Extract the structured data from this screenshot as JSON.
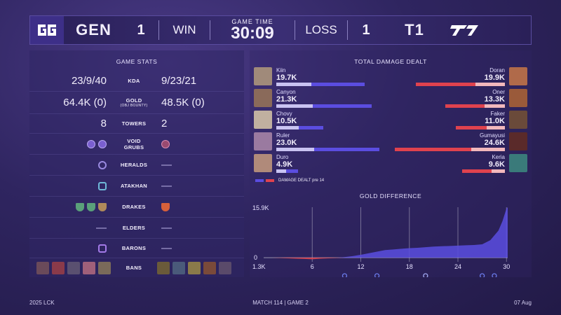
{
  "header": {
    "team_left": {
      "name": "GEN",
      "wins": "1",
      "result": "WIN"
    },
    "game_time_label": "GAME TIME",
    "game_time": "30:09",
    "team_right": {
      "name": "T1",
      "wins": "1",
      "result": "LOSS"
    }
  },
  "game_stats": {
    "title": "GAME STATS",
    "kda": {
      "label": "KDA",
      "left": "23/9/40",
      "right": "9/23/21"
    },
    "gold": {
      "label": "GOLD",
      "sublabel": "(OBJ BOUNTY)",
      "left": "64.4K (0)",
      "right": "48.5K (0)"
    },
    "towers": {
      "label": "TOWERS",
      "left": "8",
      "right": "2"
    },
    "void_grubs": {
      "label": "VOID GRUBS",
      "left_count": 2,
      "right_count": 1
    },
    "heralds": {
      "label": "HERALDS",
      "left_count": 1,
      "right": "—"
    },
    "atakhan": {
      "label": "ATAKHAN",
      "left_count": 1,
      "right": "—"
    },
    "drakes": {
      "label": "DRAKES",
      "left_icons": [
        "drake-g",
        "drake-g",
        "drake-b"
      ],
      "right_icons": [
        "drake-r"
      ]
    },
    "elders": {
      "label": "ELDERS",
      "left": "—",
      "right": "—"
    },
    "barons": {
      "label": "BARONS",
      "left_count": 1,
      "right": "—"
    },
    "bans": {
      "label": "BANS"
    }
  },
  "damage": {
    "title": "TOTAL DAMAGE DEALT",
    "legend": "DAMAGE DEALT pre 14",
    "colors": {
      "left": "#5b4de0",
      "left_pre": "#c9c3f2",
      "right": "#e0424e",
      "right_pre": "#f2b8bc"
    },
    "max": 25,
    "left": [
      {
        "name": "Kiin",
        "value_label": "19.7K",
        "value": 19.7,
        "pre": 7.8
      },
      {
        "name": "Canyon",
        "value_label": "21.3K",
        "value": 21.3,
        "pre": 8.2
      },
      {
        "name": "Chovy",
        "value_label": "10.5K",
        "value": 10.5,
        "pre": 5.0
      },
      {
        "name": "Ruler",
        "value_label": "23.0K",
        "value": 23.0,
        "pre": 8.5
      },
      {
        "name": "Duro",
        "value_label": "4.9K",
        "value": 4.9,
        "pre": 2.2
      }
    ],
    "right": [
      {
        "name": "Doran",
        "value_label": "19.9K",
        "value": 19.9,
        "pre": 6.5
      },
      {
        "name": "Oner",
        "value_label": "13.3K",
        "value": 13.3,
        "pre": 4.5
      },
      {
        "name": "Faker",
        "value_label": "11.0K",
        "value": 11.0,
        "pre": 4.0
      },
      {
        "name": "Gumayusi",
        "value_label": "24.6K",
        "value": 24.6,
        "pre": 7.5
      },
      {
        "name": "Keria",
        "value_label": "9.6K",
        "value": 9.6,
        "pre": 3.0
      }
    ]
  },
  "chart_data": {
    "type": "area",
    "title": "GOLD DIFFERENCE",
    "y_top_label": "15.9K",
    "y_zero_label": "0",
    "y_min_label": "1.3K",
    "ylim": [
      -1.3,
      15.9
    ],
    "xlim": [
      0,
      30.15
    ],
    "x_ticks": [
      6,
      12,
      18,
      24,
      30
    ],
    "x": [
      0,
      1,
      2,
      3,
      4,
      5,
      6,
      7,
      8,
      9,
      10,
      11,
      12,
      13,
      14,
      15,
      16,
      17,
      18,
      19,
      20,
      21,
      22,
      23,
      24,
      25,
      26,
      27,
      28,
      29,
      29.5,
      30,
      30.15
    ],
    "values": [
      0,
      0,
      -0.1,
      -0.2,
      -0.3,
      -0.4,
      -0.5,
      -0.3,
      -0.2,
      -0.1,
      0.2,
      0.5,
      0.9,
      1.4,
      1.9,
      2.4,
      2.6,
      2.8,
      3.0,
      3.1,
      3.3,
      3.5,
      3.6,
      3.7,
      3.8,
      3.9,
      4.0,
      4.2,
      5.5,
      8.5,
      11.5,
      15.5,
      15.9
    ],
    "colors": {
      "positive": "#5b4de0",
      "negative": "#e0424e"
    }
  },
  "footer": {
    "left": "2025 LCK",
    "center": "MATCH 114  |  GAME 2",
    "right": "07 Aug"
  }
}
